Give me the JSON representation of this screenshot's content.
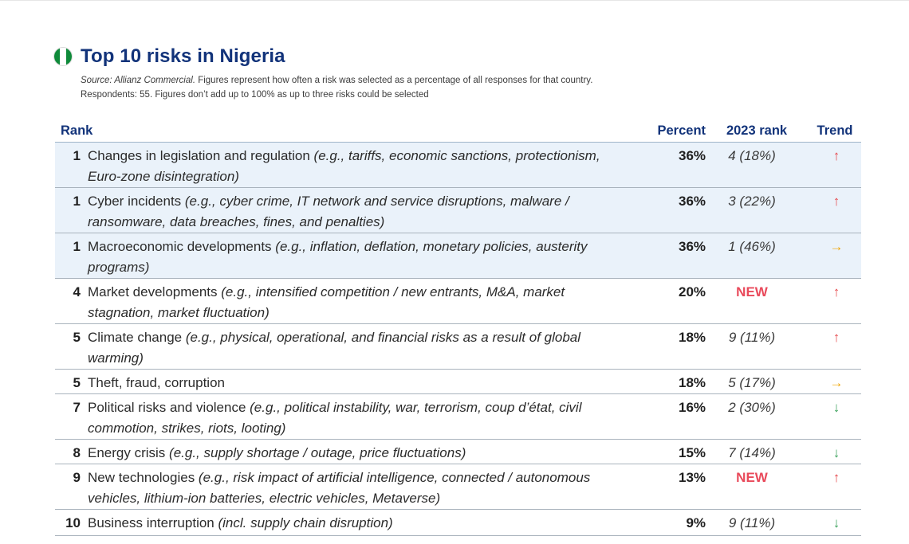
{
  "title": "Top 10 risks in Nigeria",
  "source": {
    "label": "Source: Allianz Commercial.",
    "line1": " Figures represent how often a risk was selected as a percentage of all responses for that country.",
    "line2": "Respondents: 55. Figures don’t add up to 100% as up to three risks could be selected"
  },
  "flag_colors": [
    "#0f8a3a",
    "#ffffff",
    "#0f8a3a"
  ],
  "colors": {
    "title": "#12337a",
    "highlight_row": "#eaf2fa",
    "new": "#e94a5b",
    "up": "#e5484d",
    "flat": "#f0a400",
    "down": "#3da35d"
  },
  "columns": {
    "rank": "Rank",
    "percent": "Percent",
    "prev": "2023 rank",
    "trend": "Trend"
  },
  "rows": [
    {
      "rank": "1",
      "risk": "Changes in legislation and regulation",
      "example": " (e.g., tariffs, economic sanctions, protectionism, Euro-zone disintegration)",
      "percent": "36%",
      "prev": "4 (18%)",
      "trend": "↑",
      "trend_dir": "up",
      "highlight": true
    },
    {
      "rank": "1",
      "risk": "Cyber incidents",
      "example": " (e.g., cyber crime, IT network and service disruptions, malware / ransomware, data breaches, fines, and penalties)",
      "percent": "36%",
      "prev": "3 (22%)",
      "trend": "↑",
      "trend_dir": "up",
      "highlight": true
    },
    {
      "rank": "1",
      "risk": "Macroeconomic developments",
      "example": " (e.g., inflation, deflation, monetary policies, austerity programs)",
      "percent": "36%",
      "prev": "1 (46%)",
      "trend": "→",
      "trend_dir": "flat",
      "highlight": true
    },
    {
      "rank": "4",
      "risk": "Market developments",
      "example": " (e.g., intensified competition / new entrants, M&A, market stagnation, market fluctuation)",
      "percent": "20%",
      "prev": "NEW",
      "trend": "↑",
      "trend_dir": "up",
      "highlight": false
    },
    {
      "rank": "5",
      "risk": "Climate change",
      "example": " (e.g., physical, operational, and financial risks as a result of global warming)",
      "percent": "18%",
      "prev": "9 (11%)",
      "trend": "↑",
      "trend_dir": "up",
      "highlight": false
    },
    {
      "rank": "5",
      "risk": "Theft, fraud, corruption",
      "example": "",
      "percent": "18%",
      "prev": "5 (17%)",
      "trend": "→",
      "trend_dir": "flat",
      "highlight": false
    },
    {
      "rank": "7",
      "risk": "Political risks and violence",
      "example": " (e.g., political instability, war, terrorism, coup d’état, civil commotion, strikes, riots, looting)",
      "percent": "16%",
      "prev": "2 (30%)",
      "trend": "↓",
      "trend_dir": "down",
      "highlight": false
    },
    {
      "rank": "8",
      "risk": "Energy crisis",
      "example": " (e.g., supply shortage / outage, price fluctuations)",
      "percent": "15%",
      "prev": "7 (14%)",
      "trend": "↓",
      "trend_dir": "down",
      "highlight": false
    },
    {
      "rank": "9",
      "risk": "New technologies",
      "example": " (e.g., risk impact of artificial intelligence, connected / autonomous vehicles, lithium-ion batteries, electric vehicles, Metaverse)",
      "percent": "13%",
      "prev": "NEW",
      "trend": "↑",
      "trend_dir": "up",
      "highlight": false
    },
    {
      "rank": "10",
      "risk": "Business interruption",
      "example": " (incl. supply chain disruption)",
      "percent": "9%",
      "prev": "9 (11%)",
      "trend": "↓",
      "trend_dir": "down",
      "highlight": false
    }
  ]
}
